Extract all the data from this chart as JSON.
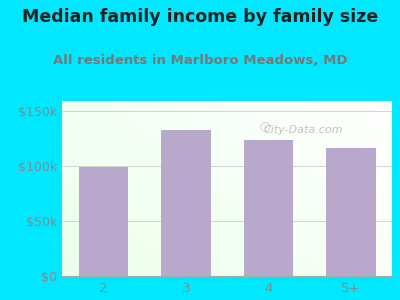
{
  "title": "Median family income by family size",
  "subtitle": "All residents in Marlboro Meadows, MD",
  "categories": [
    "2",
    "3",
    "4",
    "5+"
  ],
  "values": [
    99000,
    133000,
    124000,
    117000
  ],
  "bar_color": "#b8a8cc",
  "background_color": "#00e8ff",
  "title_color": "#222222",
  "subtitle_color": "#777777",
  "tick_color": "#888888",
  "ylim": [
    0,
    160000
  ],
  "yticks": [
    0,
    50000,
    100000,
    150000
  ],
  "ytick_labels": [
    "$0",
    "$50k",
    "$100k",
    "$150k"
  ],
  "title_fontsize": 12.5,
  "subtitle_fontsize": 9.5,
  "watermark": "City-Data.com"
}
